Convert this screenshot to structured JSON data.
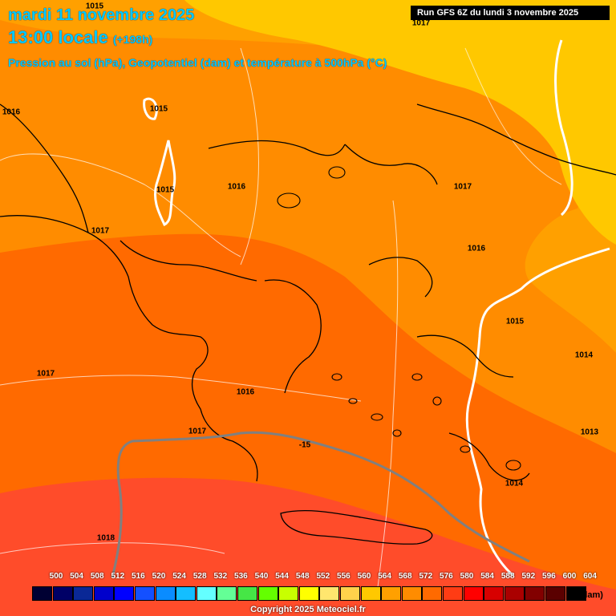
{
  "header": {
    "title": "mardi 11 novembre 2025",
    "time": "13:00 locale",
    "time_offset": "(+198h)",
    "subtitle": "Pression au sol (hPa), Geopotentiel (dam) et température à 500hPa (°C)"
  },
  "run_info": "Run GFS 6Z du lundi 3 novembre 2025",
  "pressure_labels": [
    "1015",
    "1017",
    "1016",
    "1015",
    "1015",
    "1016",
    "1017",
    "1017",
    "1016",
    "1015",
    "1014",
    "1017",
    "1016",
    "1017",
    "1013",
    "1014",
    "1018"
  ],
  "temperature_label": "-15",
  "legend": {
    "unit": "(dam)",
    "ticks": [
      "500",
      "504",
      "508",
      "512",
      "516",
      "520",
      "524",
      "528",
      "532",
      "536",
      "540",
      "544",
      "548",
      "552",
      "556",
      "560",
      "564",
      "568",
      "572",
      "576",
      "580",
      "584",
      "588",
      "592",
      "596",
      "600",
      "604"
    ],
    "colors": [
      "#000033",
      "#000066",
      "#0a2896",
      "#0000cc",
      "#0000ff",
      "#1450ff",
      "#0a8cff",
      "#14beff",
      "#64ffff",
      "#64ff96",
      "#46e646",
      "#64ff00",
      "#c8ff00",
      "#ffff00",
      "#ffe66e",
      "#ffd24b",
      "#ffc800",
      "#ffa000",
      "#ff8c00",
      "#ff6a00",
      "#ff3c14",
      "#ff0000",
      "#d70000",
      "#aa0000",
      "#820000",
      "#5a0000",
      "#000000"
    ]
  },
  "copyright": "Copyright 2025 Meteociel.fr"
}
